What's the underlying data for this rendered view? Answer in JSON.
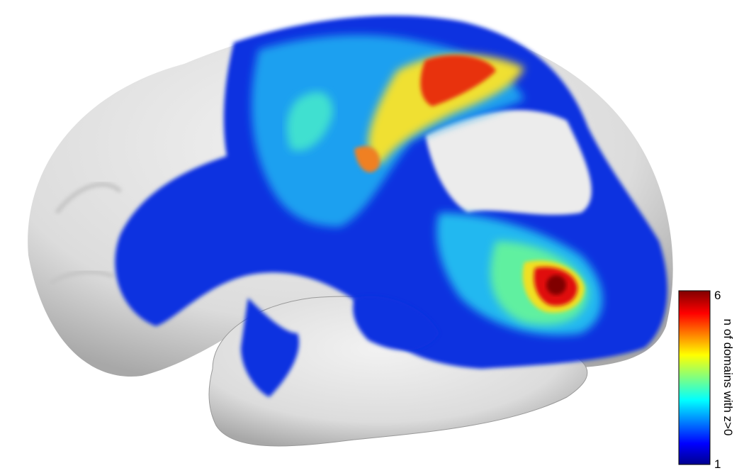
{
  "colorbar": {
    "label": "n of domains with z>0",
    "max": 6,
    "min": 1
  }
}
